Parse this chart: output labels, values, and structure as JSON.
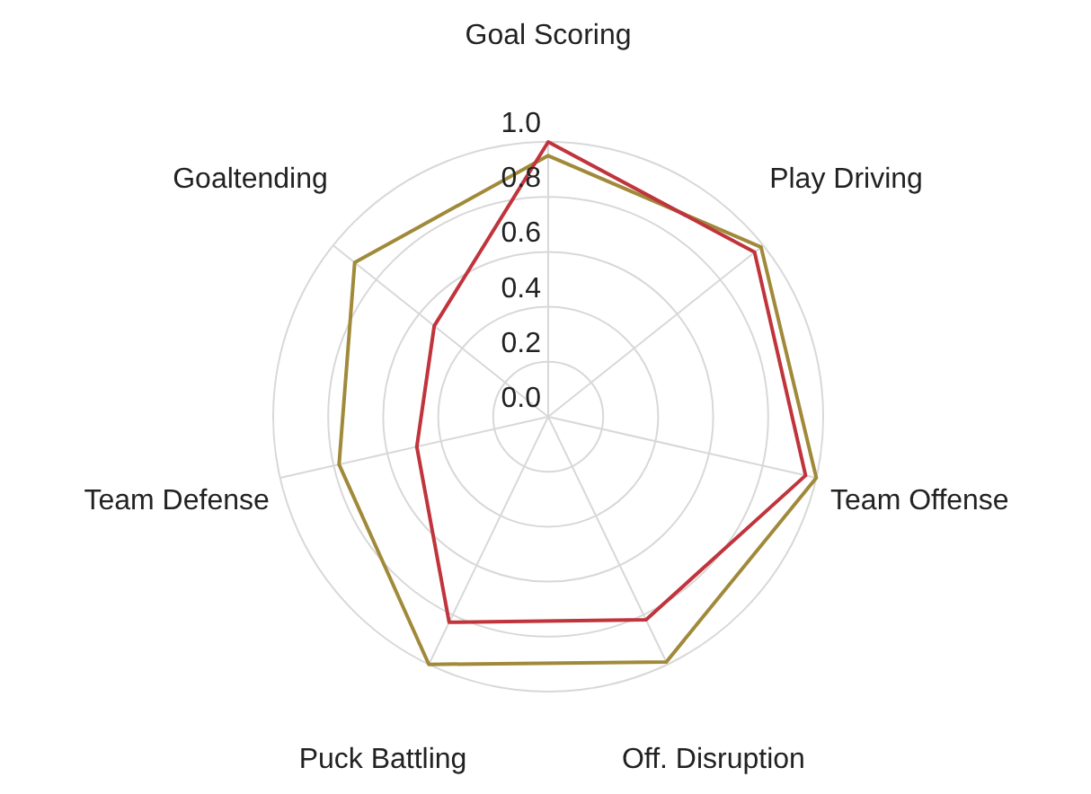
{
  "chart_data": {
    "type": "radar",
    "categories": [
      "Goal Scoring",
      "Play Driving",
      "Team Offense",
      "Off. Disruption",
      "Puck Battling",
      "Team Defense",
      "Goaltending"
    ],
    "series": [
      {
        "color": "#a08a3a",
        "values": [
          0.95,
          0.99,
          1.0,
          0.99,
          1.0,
          0.78,
          0.9
        ]
      },
      {
        "color": "#c0343c",
        "values": [
          1.0,
          0.96,
          0.96,
          0.82,
          0.83,
          0.49,
          0.53
        ]
      }
    ],
    "ylim": [
      0,
      1
    ],
    "yticks": [
      {
        "value": 0,
        "label": "0.0"
      },
      {
        "value": 0.2,
        "label": "0.2"
      },
      {
        "value": 0.4,
        "label": "0.4"
      },
      {
        "value": 0.6,
        "label": "0.6"
      },
      {
        "value": 0.8,
        "label": "0.8"
      },
      {
        "value": 1,
        "label": "1.0"
      }
    ],
    "grid": true
  }
}
